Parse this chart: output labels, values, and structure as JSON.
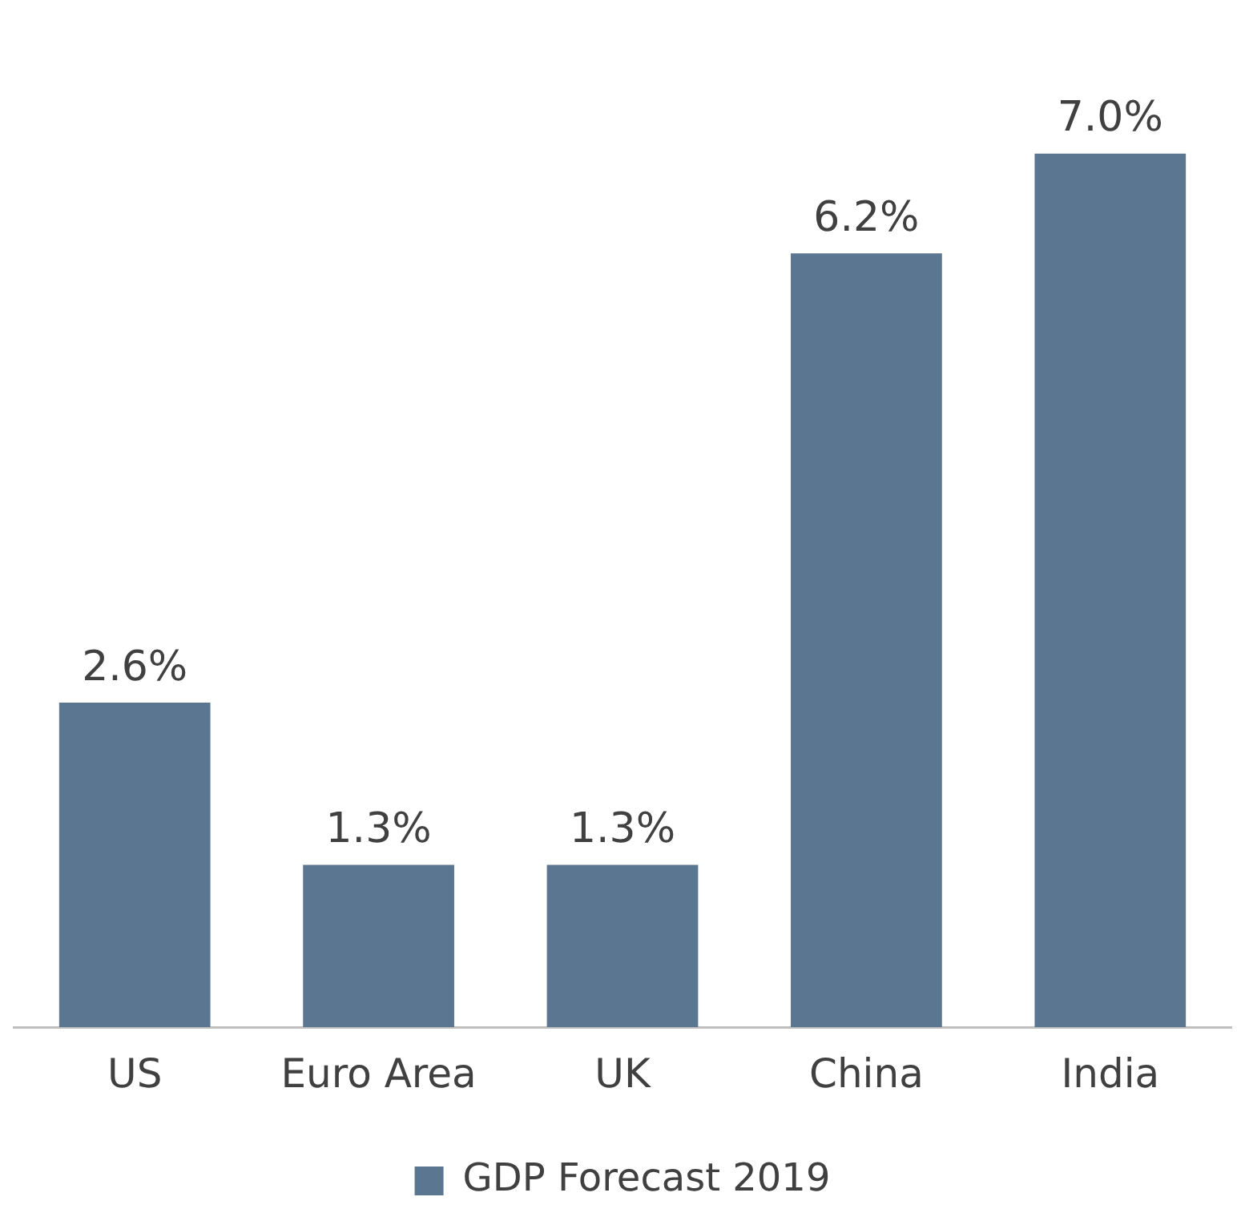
{
  "chart_data": {
    "type": "bar",
    "categories": [
      "US",
      "Euro Area",
      "UK",
      "China",
      "India"
    ],
    "series": [
      {
        "name": "GDP Forecast 2019",
        "color": "#5a7690",
        "values": [
          2.6,
          1.3,
          1.3,
          6.2,
          7.0
        ],
        "value_labels": [
          "2.6%",
          "1.3%",
          "1.3%",
          "6.2%",
          "7.0%"
        ]
      }
    ],
    "grid": false,
    "legend": "bottom",
    "tick_labels": "x"
  }
}
